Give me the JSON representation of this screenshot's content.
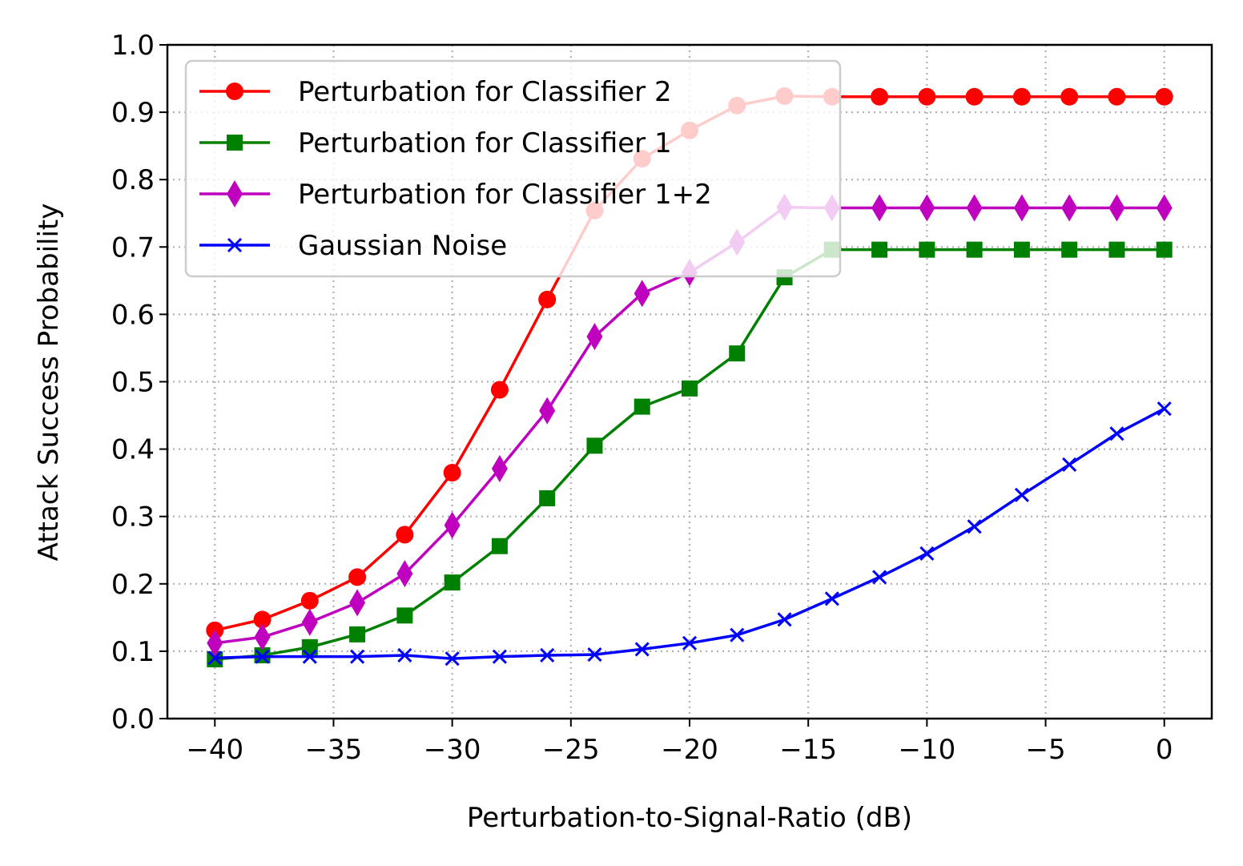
{
  "chart_data": {
    "type": "line",
    "title": "",
    "xlabel": "Perturbation-to-Signal-Ratio (dB)",
    "ylabel": "Attack Success Probability",
    "xlim": [
      -42,
      2
    ],
    "ylim": [
      0,
      1
    ],
    "xticks": [
      -40,
      -35,
      -30,
      -25,
      -20,
      -15,
      -10,
      -5,
      0
    ],
    "xtick_labels": [
      "−40",
      "−35",
      "−30",
      "−25",
      "−20",
      "−15",
      "−10",
      "−5",
      "0"
    ],
    "yticks": [
      0,
      0.1,
      0.2,
      0.3,
      0.4,
      0.5,
      0.6,
      0.7,
      0.8,
      0.9,
      1.0
    ],
    "ytick_labels": [
      "0.0",
      "0.1",
      "0.2",
      "0.3",
      "0.4",
      "0.5",
      "0.6",
      "0.7",
      "0.8",
      "0.9",
      "1.0"
    ],
    "grid": true,
    "grid_style": "dotted",
    "legend_position": "upper-left",
    "x": [
      -40,
      -38,
      -36,
      -34,
      -32,
      -30,
      -28,
      -26,
      -24,
      -22,
      -20,
      -18,
      -16,
      -14,
      -12,
      -10,
      -8,
      -6,
      -4,
      -2,
      0
    ],
    "series": [
      {
        "name": "Perturbation for Classifier 2",
        "color": "#ff0000",
        "marker": "circle",
        "values": [
          0.131,
          0.147,
          0.175,
          0.21,
          0.273,
          0.365,
          0.488,
          0.622,
          0.754,
          0.831,
          0.873,
          0.91,
          0.924,
          0.923,
          0.923,
          0.923,
          0.923,
          0.923,
          0.923,
          0.923,
          0.923
        ]
      },
      {
        "name": "Perturbation for Classifier 1",
        "color": "#008000",
        "marker": "square",
        "values": [
          0.088,
          0.094,
          0.106,
          0.125,
          0.153,
          0.202,
          0.256,
          0.327,
          0.405,
          0.463,
          0.49,
          0.542,
          0.655,
          0.696,
          0.696,
          0.696,
          0.696,
          0.696,
          0.696,
          0.696,
          0.696
        ]
      },
      {
        "name": "Perturbation for Classifier 1+2",
        "color": "#bf00bf",
        "marker": "thin-diamond",
        "values": [
          0.112,
          0.121,
          0.143,
          0.172,
          0.215,
          0.287,
          0.371,
          0.457,
          0.567,
          0.631,
          0.662,
          0.707,
          0.759,
          0.758,
          0.758,
          0.758,
          0.758,
          0.758,
          0.758,
          0.758,
          0.758
        ]
      },
      {
        "name": "Gaussian Noise",
        "color": "#0000ff",
        "marker": "x",
        "values": [
          0.09,
          0.092,
          0.092,
          0.092,
          0.094,
          0.089,
          0.092,
          0.094,
          0.095,
          0.103,
          0.112,
          0.124,
          0.147,
          0.178,
          0.21,
          0.245,
          0.285,
          0.332,
          0.377,
          0.423,
          0.46
        ]
      }
    ]
  }
}
